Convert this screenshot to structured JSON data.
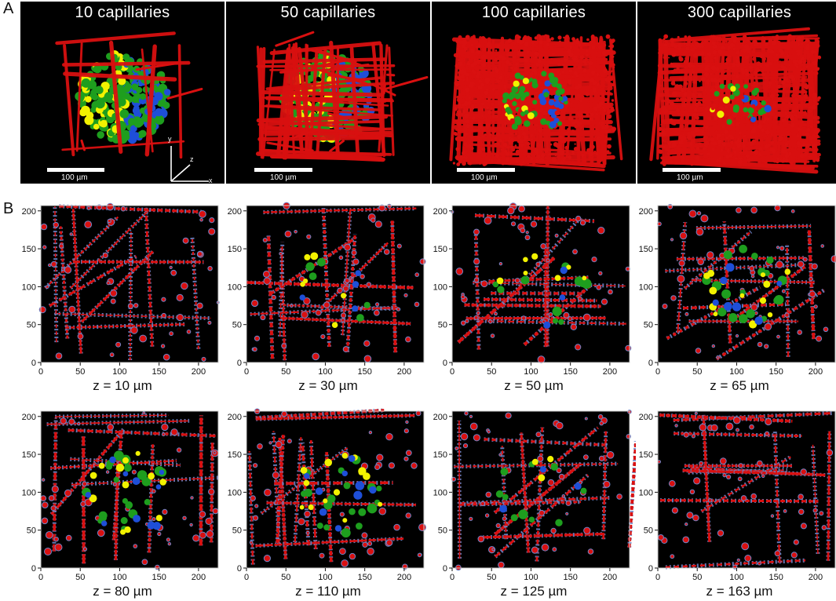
{
  "panels": {
    "a_letter": "A",
    "b_letter": "B"
  },
  "renders": [
    {
      "title": "10 capillaries",
      "scale_label": "100 µm",
      "capillary_count": 10
    },
    {
      "title": "50 capillaries",
      "scale_label": "100 µm",
      "capillary_count": 50
    },
    {
      "title": "100 capillaries",
      "scale_label": "100 µm",
      "capillary_count": 100
    },
    {
      "title": "300 capillaries",
      "scale_label": "100 µm",
      "capillary_count": 300
    }
  ],
  "axes_gizmo": {
    "x": "x",
    "y": "y",
    "z": "z"
  },
  "colors": {
    "capillary": "#d91010",
    "green_cell": "#1e9e1e",
    "yellow_cell": "#f2f200",
    "blue_cell": "#1e4fd8",
    "noise": "#6f86c8",
    "background": "#000000",
    "axis": "#ffffff"
  },
  "slices": [
    {
      "z_label": "z = 10 µm",
      "green": 0,
      "yellow": 0,
      "blue": 0
    },
    {
      "z_label": "z = 30 µm",
      "green": 5,
      "yellow": 6,
      "blue": 4
    },
    {
      "z_label": "z = 50 µm",
      "green": 10,
      "yellow": 7,
      "blue": 3
    },
    {
      "z_label": "z = 65 µm",
      "green": 18,
      "yellow": 14,
      "blue": 7
    },
    {
      "z_label": "z = 80 µm",
      "green": 20,
      "yellow": 12,
      "blue": 10
    },
    {
      "z_label": "z = 110 µm",
      "green": 18,
      "yellow": 14,
      "blue": 9
    },
    {
      "z_label": "z = 125 µm",
      "green": 10,
      "yellow": 3,
      "blue": 3
    },
    {
      "z_label": "z = 163 µm",
      "green": 0,
      "yellow": 0,
      "blue": 0
    }
  ],
  "slice_axes": {
    "x_ticks": [
      "0",
      "50",
      "100",
      "150",
      "200"
    ],
    "y_ticks": [
      "0",
      "50",
      "100",
      "150",
      "200"
    ],
    "x_range": [
      0,
      225
    ],
    "y_range": [
      0,
      207
    ]
  }
}
